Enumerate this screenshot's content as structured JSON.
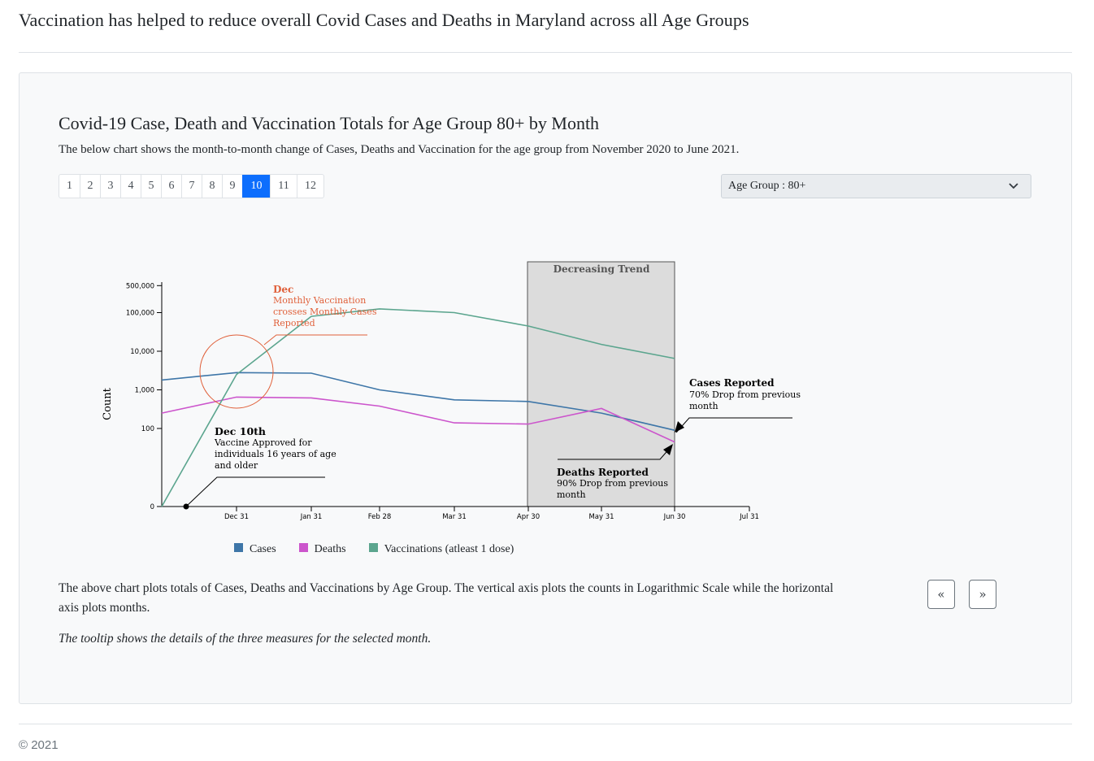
{
  "page": {
    "title": "Vaccination has helped to reduce overall Covid Cases and Deaths in Maryland across all Age Groups",
    "footer": "© 2021"
  },
  "card": {
    "chart_title": "Covid-19 Case, Death and Vaccination Totals for Age Group 80+ by Month",
    "description": "The below chart shows the month-to-month change of Cases, Deaths and Vaccination for the age group from November 2020 to June 2021.",
    "pagination": [
      "1",
      "2",
      "3",
      "4",
      "5",
      "6",
      "7",
      "8",
      "9",
      "10",
      "11",
      "12"
    ],
    "active_page": "10",
    "age_select": "Age Group : 80+",
    "body_text": "The above chart plots totals of Cases, Deaths and Vaccinations by Age Group. The vertical axis plots the counts in Logarithmic Scale while the horizontal axis plots months.",
    "note_text": "The tooltip shows the details of the three measures for the selected month.",
    "prev_label": "«",
    "next_label": "»"
  },
  "chart_data": {
    "type": "line",
    "y_scale": "log",
    "ylabel": "Count",
    "y_ticks": [
      "0",
      "100",
      "1,000",
      "10,000",
      "100,000",
      "500,000"
    ],
    "x_ticks": [
      "Dec 31",
      "Jan 31",
      "Feb 28",
      "Mar 31",
      "Apr 30",
      "May 31",
      "Jun 30",
      "Jul 31"
    ],
    "x": [
      "Nov 30",
      "Dec 31",
      "Jan 31",
      "Feb 28",
      "Mar 31",
      "Apr 30",
      "May 31",
      "Jun 30"
    ],
    "series": [
      {
        "name": "Cases",
        "color": "#3e76a8",
        "values": [
          1800,
          2800,
          2700,
          1000,
          550,
          500,
          250,
          90
        ]
      },
      {
        "name": "Deaths",
        "color": "#cc55cc",
        "values": [
          250,
          650,
          620,
          380,
          140,
          130,
          330,
          45
        ]
      },
      {
        "name": "Vaccinations (atleast 1 dose)",
        "color": "#5ba58e",
        "values": [
          0,
          2500,
          80000,
          125000,
          100000,
          45000,
          15000,
          6500
        ]
      }
    ],
    "shaded_region": {
      "from": "Apr 30",
      "to": "Jun 30",
      "label": "Decreasing Trend"
    },
    "annotations": [
      {
        "title": "Dec",
        "text": [
          "Monthly Vaccination",
          "crosses Monthly Cases",
          "Reported"
        ],
        "color": "#e0603a"
      },
      {
        "title": "Dec 10th",
        "text": [
          "Vaccine Approved for",
          "individuals 16 years of age",
          "and older"
        ],
        "color": "#000000"
      },
      {
        "title": "Cases Reported",
        "text": [
          "70% Drop from previous",
          "month"
        ],
        "color": "#000000"
      },
      {
        "title": "Deaths Reported",
        "text": [
          "90% Drop from previous",
          "month"
        ],
        "color": "#000000"
      }
    ]
  }
}
